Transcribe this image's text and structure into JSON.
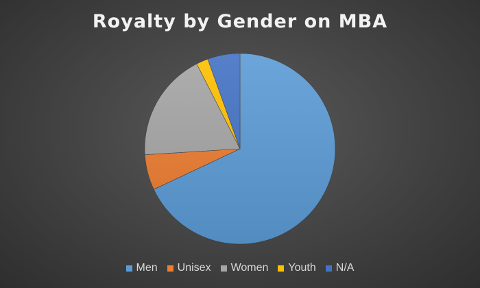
{
  "chart_data": {
    "type": "pie",
    "title": "Royalty by Gender on MBA",
    "categories": [
      "Men",
      "Unisex",
      "Women",
      "Youth",
      "N/A"
    ],
    "values": [
      68,
      6,
      18.5,
      2,
      5.5
    ],
    "colors": [
      "#5b9bd5",
      "#ed7d31",
      "#a5a5a5",
      "#ffc000",
      "#4472c4"
    ],
    "legend_position": "bottom",
    "start_angle_deg": 0,
    "direction": "clockwise"
  }
}
